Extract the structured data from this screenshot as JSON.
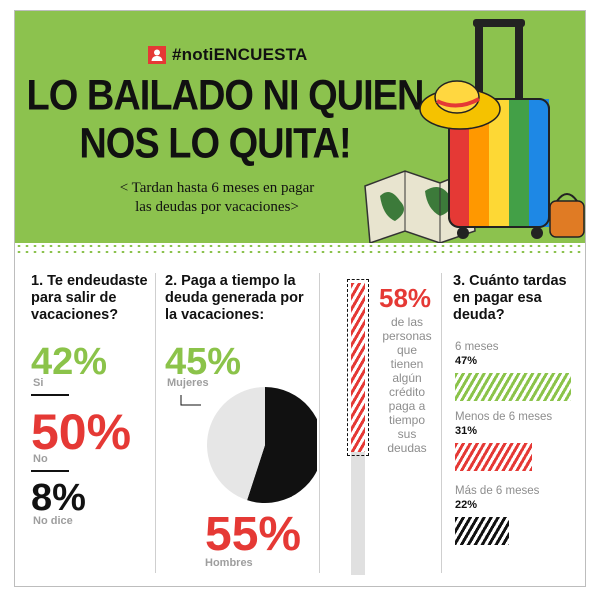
{
  "header": {
    "brand": "#notiENCUESTA",
    "title_line1": "LO BAILADO NI QUIEN",
    "title_line2": "NOS LO QUITA!",
    "subtitle_line1": "< Tardan hasta 6 meses en pagar",
    "subtitle_line2": "las deudas por vacaciones>"
  },
  "colors": {
    "green": "#8cc24e",
    "red": "#e53935",
    "black": "#111111",
    "gray": "#9e9e9e"
  },
  "q1": {
    "heading": [
      "1. Te endeudaste",
      "para salir de",
      "vacaciones?"
    ],
    "items": [
      {
        "pct": "42%",
        "label": "Si"
      },
      {
        "pct": "50%",
        "label": "No"
      },
      {
        "pct": "8%",
        "label": "No dice"
      }
    ]
  },
  "q2": {
    "heading": [
      "2. Paga a tiempo la",
      "deuda generada por",
      "la vacaciones:"
    ],
    "women_pct": "45%",
    "women_label": "Mujeres",
    "men_pct": "55%",
    "men_label": "Hombres",
    "pie": {
      "women": 45,
      "men": 55
    }
  },
  "stat": {
    "pct": "58%",
    "text": [
      "de las",
      "personas",
      "que",
      "tienen",
      "algún",
      "crédito",
      "paga a",
      "tiempo",
      "sus",
      "deudas"
    ],
    "value": 58
  },
  "q3": {
    "heading": [
      "3. Cuánto tardas",
      "en pagar esa",
      "deuda?"
    ],
    "bars": [
      {
        "label": "6 meses",
        "pct": "47%",
        "value": 47,
        "color": "green"
      },
      {
        "label": "Menos de 6 meses",
        "pct": "31%",
        "value": 31,
        "color": "red"
      },
      {
        "label": "Más de 6 meses",
        "pct": "22%",
        "value": 22,
        "color": "black"
      }
    ]
  }
}
